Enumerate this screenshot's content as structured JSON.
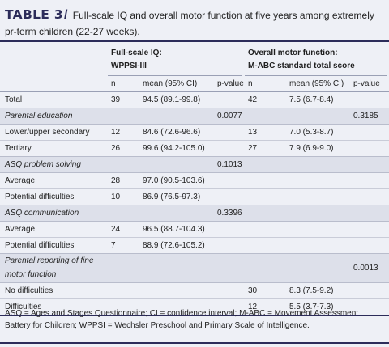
{
  "caption": {
    "label": "TABLE 3",
    "separator": "/",
    "text": "Full-scale IQ and overall motor function at five years among extremely pr-term children (22-27 weeks)."
  },
  "headers": {
    "group1_line1": "Full-scale IQ:",
    "group1_line2": "WPPSI-III",
    "group2_line1": "Overall motor function:",
    "group2_line2": "M-ABC standard total score",
    "n1": "n",
    "mean1": "mean (95% CI)",
    "p1": "p-value",
    "n2": "n",
    "mean2": "mean (95% CI)",
    "p2": "p-value"
  },
  "rows": [
    {
      "label": "Total",
      "n1": "39",
      "m1": "94.5 (89.1-99.8)",
      "p1": "",
      "n2": "42",
      "m2": "7.5 (6.7-8.4)",
      "p2": ""
    },
    {
      "label": "Parental education",
      "n1": "",
      "m1": "",
      "p1": "0.0077",
      "n2": "",
      "m2": "",
      "p2": "0.3185"
    },
    {
      "label": "Lower/upper secondary",
      "n1": "12",
      "m1": "84.6 (72.6-96.6)",
      "p1": "",
      "n2": "13",
      "m2": "7.0 (5.3-8.7)",
      "p2": ""
    },
    {
      "label": "Tertiary",
      "n1": "26",
      "m1": "99.6 (94.2-105.0)",
      "p1": "",
      "n2": "27",
      "m2": "7.9 (6.9-9.0)",
      "p2": ""
    },
    {
      "label": "ASQ problem solving",
      "n1": "",
      "m1": "",
      "p1": "0.1013",
      "n2": "",
      "m2": "",
      "p2": ""
    },
    {
      "label": "Average",
      "n1": "28",
      "m1": "97.0 (90.5-103.6)",
      "p1": "",
      "n2": "",
      "m2": "",
      "p2": ""
    },
    {
      "label": "Potential difficulties",
      "n1": "10",
      "m1": "86.9 (76.5-97.3)",
      "p1": "",
      "n2": "",
      "m2": "",
      "p2": ""
    },
    {
      "label": "ASQ communication",
      "n1": "",
      "m1": "",
      "p1": "0.3396",
      "n2": "",
      "m2": "",
      "p2": ""
    },
    {
      "label": "Average",
      "n1": "24",
      "m1": "96.5 (88.7-104.3)",
      "p1": "",
      "n2": "",
      "m2": "",
      "p2": ""
    },
    {
      "label": "Potential difficulties",
      "n1": "7",
      "m1": "88.9 (72.6-105.2)",
      "p1": "",
      "n2": "",
      "m2": "",
      "p2": ""
    },
    {
      "label": "Parental reporting of fine motor function",
      "label_line1": "Parental reporting of fine",
      "label_line2": "motor function",
      "n1": "",
      "m1": "",
      "p1": "",
      "n2": "",
      "m2": "",
      "p2": "0.0013"
    },
    {
      "label": "No difficulties",
      "n1": "",
      "m1": "",
      "p1": "",
      "n2": "30",
      "m2": "8.3 (7.5-9.2)",
      "p2": ""
    },
    {
      "label": "Difficulties",
      "n1": "",
      "m1": "",
      "p1": "",
      "n2": "12",
      "m2": "5.5 (3.7-7.3)",
      "p2": ""
    }
  ],
  "footnote": "ASQ = Ages and Stages Questionnaire; CI = confidence interval; M-ABC = Movement Assessment Battery for Children; WPPSI = Wechsler Preschool and Primary Scale of Intelligence.",
  "colors": {
    "accent": "#2c2c5a",
    "panel": "#eef0f6",
    "shade": "#dde0ea"
  }
}
